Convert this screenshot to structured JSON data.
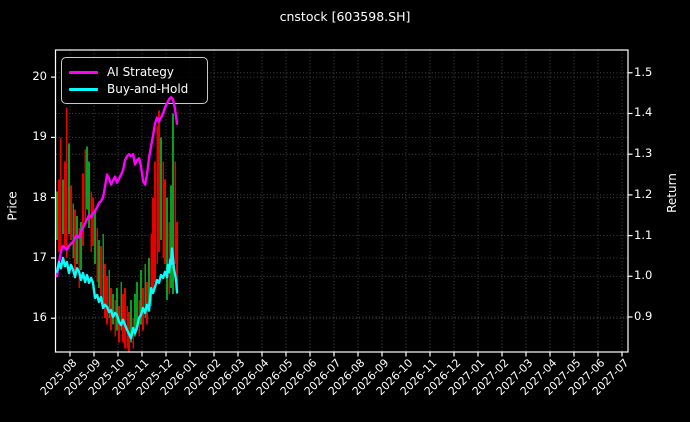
{
  "title": "cnstock [603598.SH]",
  "legend": {
    "items": [
      {
        "label": "AI Strategy",
        "color": "#ff00ff"
      },
      {
        "label": "Buy-and-Hold",
        "color": "#00ffff"
      }
    ]
  },
  "colors": {
    "background": "#000000",
    "foreground": "#ffffff",
    "grid": "#9a9a9a",
    "bar_up": "#00a020",
    "bar_down": "#e60000",
    "ai_strategy": "#ff00ff",
    "buy_and_hold": "#00ffff"
  },
  "chart_data": {
    "type": "line",
    "title": "cnstock [603598.SH]",
    "x_axis": {
      "tick_labels": [
        "2025-08",
        "2025-09",
        "2025-10",
        "2025-11",
        "2025-12",
        "2026-01",
        "2026-02",
        "2026-03",
        "2026-04",
        "2026-05",
        "2026-06",
        "2026-07",
        "2026-08",
        "2026-09",
        "2026-10",
        "2026-11",
        "2026-12",
        "2027-01",
        "2027-02",
        "2027-03",
        "2027-04",
        "2027-05",
        "2027-06",
        "2027-07"
      ],
      "grid": true,
      "note_x_units": "months since 2025-08 tick, fractional"
    },
    "left_axis": {
      "label": "Price",
      "ticks": [
        16,
        17,
        18,
        19,
        20
      ],
      "range": [
        15.44,
        20.45
      ]
    },
    "right_axis": {
      "label": "Return",
      "ticks": [
        0.9,
        1.0,
        1.1,
        1.2,
        1.3,
        1.4,
        1.5
      ],
      "range": [
        0.814,
        1.556
      ]
    },
    "legend_position": "upper-left",
    "series": [
      {
        "name": "AI Strategy",
        "axis": "right",
        "color": "#ff00ff",
        "points": [
          [
            -0.54,
            1.0
          ],
          [
            -0.46,
            1.035
          ],
          [
            -0.38,
            1.06
          ],
          [
            -0.29,
            1.075
          ],
          [
            -0.21,
            1.07
          ],
          [
            -0.13,
            1.065
          ],
          [
            -0.04,
            1.075
          ],
          [
            0.04,
            1.08
          ],
          [
            0.13,
            1.085
          ],
          [
            0.21,
            1.095
          ],
          [
            0.29,
            1.1
          ],
          [
            0.38,
            1.095
          ],
          [
            0.46,
            1.11
          ],
          [
            0.54,
            1.12
          ],
          [
            0.63,
            1.13
          ],
          [
            0.71,
            1.14
          ],
          [
            0.79,
            1.15
          ],
          [
            0.88,
            1.145
          ],
          [
            0.96,
            1.155
          ],
          [
            1.04,
            1.16
          ],
          [
            1.13,
            1.17
          ],
          [
            1.21,
            1.18
          ],
          [
            1.29,
            1.185
          ],
          [
            1.38,
            1.195
          ],
          [
            1.46,
            1.22
          ],
          [
            1.54,
            1.25
          ],
          [
            1.63,
            1.24
          ],
          [
            1.71,
            1.225
          ],
          [
            1.79,
            1.235
          ],
          [
            1.88,
            1.245
          ],
          [
            1.96,
            1.23
          ],
          [
            2.04,
            1.24
          ],
          [
            2.13,
            1.25
          ],
          [
            2.21,
            1.26
          ],
          [
            2.29,
            1.285
          ],
          [
            2.38,
            1.295
          ],
          [
            2.46,
            1.3
          ],
          [
            2.54,
            1.295
          ],
          [
            2.63,
            1.3
          ],
          [
            2.71,
            1.275
          ],
          [
            2.79,
            1.285
          ],
          [
            2.88,
            1.29
          ],
          [
            2.96,
            1.27
          ],
          [
            3.04,
            1.235
          ],
          [
            3.13,
            1.225
          ],
          [
            3.21,
            1.25
          ],
          [
            3.29,
            1.29
          ],
          [
            3.38,
            1.32
          ],
          [
            3.46,
            1.345
          ],
          [
            3.54,
            1.375
          ],
          [
            3.63,
            1.39
          ],
          [
            3.71,
            1.38
          ],
          [
            3.79,
            1.39
          ],
          [
            3.88,
            1.4
          ],
          [
            3.96,
            1.415
          ],
          [
            4.04,
            1.425
          ],
          [
            4.13,
            1.435
          ],
          [
            4.21,
            1.44
          ],
          [
            4.29,
            1.435
          ],
          [
            4.38,
            1.41
          ],
          [
            4.46,
            1.375
          ]
        ]
      },
      {
        "name": "Buy-and-Hold",
        "axis": "right",
        "color": "#00ffff",
        "points": [
          [
            -0.54,
            1.011
          ],
          [
            -0.46,
            1.035
          ],
          [
            -0.38,
            1.02
          ],
          [
            -0.29,
            1.045
          ],
          [
            -0.21,
            1.025
          ],
          [
            -0.13,
            1.035
          ],
          [
            -0.04,
            1.008
          ],
          [
            0.04,
            1.028
          ],
          [
            0.13,
            1.016
          ],
          [
            0.21,
            0.998
          ],
          [
            0.29,
            1.02
          ],
          [
            0.38,
            1.011
          ],
          [
            0.46,
            0.991
          ],
          [
            0.54,
            1.008
          ],
          [
            0.63,
            0.986
          ],
          [
            0.71,
            1.003
          ],
          [
            0.79,
            0.984
          ],
          [
            0.88,
            0.996
          ],
          [
            0.96,
            0.984
          ],
          [
            1.04,
            0.947
          ],
          [
            1.13,
            0.954
          ],
          [
            1.21,
            0.937
          ],
          [
            1.29,
            0.949
          ],
          [
            1.38,
            0.922
          ],
          [
            1.46,
            0.93
          ],
          [
            1.54,
            0.925
          ],
          [
            1.63,
            0.912
          ],
          [
            1.71,
            0.917
          ],
          [
            1.79,
            0.9
          ],
          [
            1.88,
            0.91
          ],
          [
            1.96,
            0.905
          ],
          [
            2.04,
            0.888
          ],
          [
            2.13,
            0.88
          ],
          [
            2.21,
            0.893
          ],
          [
            2.29,
            0.88
          ],
          [
            2.38,
            0.868
          ],
          [
            2.46,
            0.858
          ],
          [
            2.54,
            0.848
          ],
          [
            2.63,
            0.873
          ],
          [
            2.71,
            0.86
          ],
          [
            2.79,
            0.875
          ],
          [
            2.88,
            0.898
          ],
          [
            2.96,
            0.905
          ],
          [
            3.04,
            0.922
          ],
          [
            3.13,
            0.91
          ],
          [
            3.21,
            0.93
          ],
          [
            3.29,
            0.917
          ],
          [
            3.38,
            0.971
          ],
          [
            3.46,
            0.959
          ],
          [
            3.54,
            0.974
          ],
          [
            3.63,
            0.991
          ],
          [
            3.71,
            0.984
          ],
          [
            3.79,
            1.003
          ],
          [
            3.88,
            0.996
          ],
          [
            3.96,
            1.011
          ],
          [
            4.04,
            0.998
          ],
          [
            4.08,
            1.028
          ],
          [
            4.13,
            1.01
          ],
          [
            4.17,
            1.04
          ],
          [
            4.21,
            1.03
          ],
          [
            4.25,
            1.068
          ],
          [
            4.33,
            1.02
          ],
          [
            4.42,
            0.99
          ],
          [
            4.46,
            0.961
          ]
        ]
      }
    ],
    "price_bars": {
      "axis": "left",
      "colors": {
        "g": "#00a020",
        "r": "#e60000"
      },
      "bars": [
        [
          -0.54,
          17.3,
          18.1,
          "g"
        ],
        [
          -0.46,
          17.1,
          18.3,
          "r"
        ],
        [
          -0.38,
          17.0,
          19.0,
          "r"
        ],
        [
          -0.29,
          17.4,
          18.3,
          "g"
        ],
        [
          -0.21,
          17.2,
          18.6,
          "r"
        ],
        [
          -0.13,
          17.0,
          19.5,
          "r"
        ],
        [
          -0.04,
          17.4,
          18.9,
          "g"
        ],
        [
          0.04,
          17.3,
          18.2,
          "r"
        ],
        [
          0.13,
          17.0,
          17.9,
          "g"
        ],
        [
          0.21,
          16.7,
          17.8,
          "r"
        ],
        [
          0.29,
          16.9,
          17.7,
          "g"
        ],
        [
          0.38,
          16.5,
          17.5,
          "r"
        ],
        [
          0.46,
          16.8,
          17.6,
          "g"
        ],
        [
          0.54,
          17.2,
          18.4,
          "r"
        ],
        [
          0.63,
          17.6,
          18.8,
          "r"
        ],
        [
          0.71,
          17.8,
          18.85,
          "g"
        ],
        [
          0.79,
          17.5,
          18.6,
          "g"
        ],
        [
          0.88,
          17.1,
          18.1,
          "r"
        ],
        [
          0.96,
          17.2,
          18.0,
          "r"
        ],
        [
          1.04,
          16.9,
          17.8,
          "g"
        ],
        [
          1.13,
          16.6,
          17.5,
          "r"
        ],
        [
          1.21,
          16.5,
          17.3,
          "g"
        ],
        [
          1.29,
          16.3,
          17.2,
          "r"
        ],
        [
          1.38,
          16.2,
          17.4,
          "g"
        ],
        [
          1.46,
          16.0,
          16.9,
          "r"
        ],
        [
          1.54,
          15.9,
          16.7,
          "r"
        ],
        [
          1.63,
          16.0,
          16.8,
          "g"
        ],
        [
          1.71,
          15.8,
          16.5,
          "r"
        ],
        [
          1.79,
          15.9,
          16.4,
          "g"
        ],
        [
          1.88,
          15.7,
          16.3,
          "r"
        ],
        [
          1.96,
          15.8,
          16.5,
          "g"
        ],
        [
          2.04,
          15.6,
          16.2,
          "r"
        ],
        [
          2.13,
          15.8,
          16.6,
          "g"
        ],
        [
          2.21,
          15.6,
          16.4,
          "r"
        ],
        [
          2.29,
          15.5,
          16.5,
          "r"
        ],
        [
          2.38,
          15.5,
          16.2,
          "r"
        ],
        [
          2.46,
          15.45,
          16.1,
          "r"
        ],
        [
          2.54,
          15.6,
          16.3,
          "g"
        ],
        [
          2.63,
          15.5,
          16.0,
          "r"
        ],
        [
          2.71,
          15.7,
          16.4,
          "g"
        ],
        [
          2.79,
          15.8,
          16.6,
          "g"
        ],
        [
          2.88,
          15.7,
          16.3,
          "r"
        ],
        [
          2.96,
          15.9,
          16.8,
          "g"
        ],
        [
          3.04,
          15.8,
          16.5,
          "r"
        ],
        [
          3.13,
          16.0,
          16.9,
          "g"
        ],
        [
          3.21,
          15.9,
          16.6,
          "r"
        ],
        [
          3.29,
          16.1,
          17.0,
          "g"
        ],
        [
          3.38,
          16.2,
          17.4,
          "r"
        ],
        [
          3.46,
          16.4,
          18.0,
          "r"
        ],
        [
          3.54,
          16.6,
          18.6,
          "r"
        ],
        [
          3.63,
          16.9,
          19.2,
          "r"
        ],
        [
          3.71,
          17.1,
          19.45,
          "r"
        ],
        [
          3.79,
          17.3,
          19.0,
          "g"
        ],
        [
          3.88,
          17.0,
          18.6,
          "r"
        ],
        [
          3.96,
          16.9,
          18.3,
          "r"
        ],
        [
          4.04,
          16.3,
          18.0,
          "g"
        ],
        [
          4.13,
          16.4,
          17.6,
          "r"
        ],
        [
          4.21,
          16.5,
          18.2,
          "g"
        ],
        [
          4.29,
          16.4,
          19.4,
          "g"
        ],
        [
          4.38,
          16.9,
          18.6,
          "r"
        ],
        [
          4.46,
          16.4,
          17.6,
          "r"
        ]
      ]
    }
  }
}
